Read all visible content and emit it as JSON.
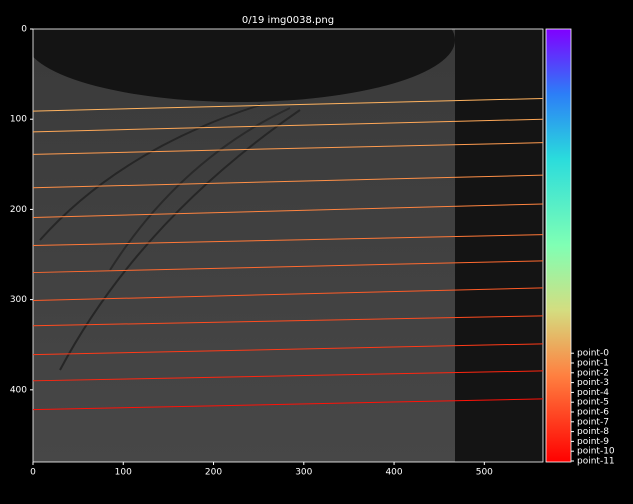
{
  "chart_data": {
    "type": "line",
    "title": "0/19 img0038.png",
    "x": [
      0,
      565
    ],
    "xlim": [
      0,
      565
    ],
    "ylim": [
      480,
      0
    ],
    "xticks": [
      0,
      100,
      200,
      300,
      400,
      500
    ],
    "yticks": [
      0,
      100,
      200,
      300,
      400
    ],
    "series": [
      {
        "name": "point-0",
        "color": "#ffb360",
        "values": [
          91,
          77
        ]
      },
      {
        "name": "point-1",
        "color": "#ffa858",
        "values": [
          114,
          100
        ]
      },
      {
        "name": "point-2",
        "color": "#ff9c50",
        "values": [
          139,
          126
        ]
      },
      {
        "name": "point-3",
        "color": "#ff9048",
        "values": [
          176,
          162
        ]
      },
      {
        "name": "point-4",
        "color": "#ff8440",
        "values": [
          209,
          194
        ]
      },
      {
        "name": "point-5",
        "color": "#ff7838",
        "values": [
          240,
          228
        ]
      },
      {
        "name": "point-6",
        "color": "#ff6a30",
        "values": [
          270,
          257
        ]
      },
      {
        "name": "point-7",
        "color": "#ff5c28",
        "values": [
          301,
          287
        ]
      },
      {
        "name": "point-8",
        "color": "#ff4c20",
        "values": [
          329,
          318
        ]
      },
      {
        "name": "point-9",
        "color": "#ff3a18",
        "values": [
          361,
          349
        ]
      },
      {
        "name": "point-10",
        "color": "#ff2610",
        "values": [
          390,
          379
        ]
      },
      {
        "name": "point-11",
        "color": "#ff1208",
        "values": [
          422,
          410
        ]
      }
    ]
  }
}
